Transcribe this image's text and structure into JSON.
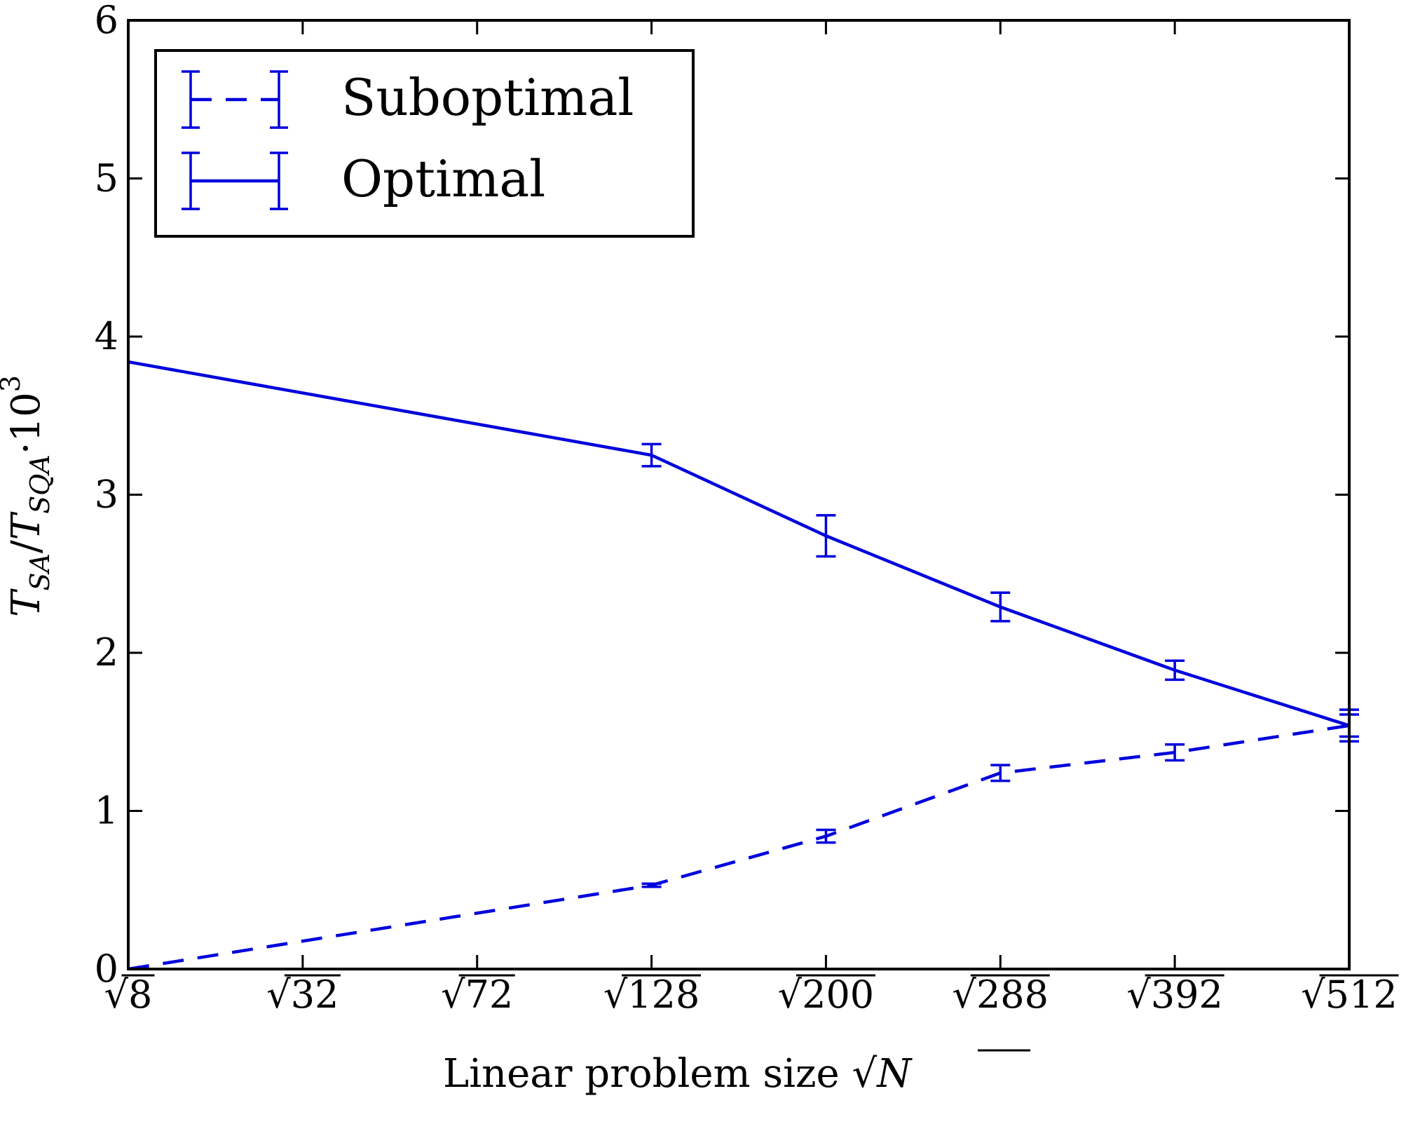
{
  "chart_data": {
    "type": "line",
    "x_tick_labels": [
      "8",
      "32",
      "72",
      "128",
      "200",
      "288",
      "392",
      "512"
    ],
    "x_tick_symbol": "√",
    "xlabel": "Linear problem size √N",
    "xlabel_text": "Linear problem size",
    "xlabel_symbol": "√",
    "xlabel_var": "N",
    "ylabel": "T_SA/T_SQA·10^3",
    "ylabel_parts": {
      "T1": "T",
      "sub1": "SA",
      "slash": "/",
      "T2": "T",
      "sub2": "SQA",
      "dot": "·10",
      "exp": "3"
    },
    "ylim": [
      0,
      6
    ],
    "y_ticks": [
      "0",
      "1",
      "2",
      "3",
      "4",
      "5",
      "6"
    ],
    "legend_position": "top-left",
    "grid": false,
    "colors": {
      "series": "#0000dd",
      "axes": "#000000"
    },
    "series": [
      {
        "name": "Suboptimal",
        "style": "dashed",
        "x": [
          "8",
          "32",
          "72",
          "128",
          "200",
          "288",
          "392",
          "512"
        ],
        "y": [
          0.0,
          null,
          null,
          0.53,
          0.84,
          1.24,
          1.37,
          1.54
        ],
        "yerr": [
          0,
          null,
          null,
          0.01,
          0.04,
          0.05,
          0.05,
          0.07
        ]
      },
      {
        "name": "Optimal",
        "style": "solid",
        "x": [
          "8",
          "32",
          "72",
          "128",
          "200",
          "288",
          "392",
          "512"
        ],
        "y": [
          3.84,
          null,
          null,
          3.25,
          2.74,
          2.29,
          1.89,
          1.54
        ],
        "yerr": [
          0,
          null,
          null,
          0.07,
          0.13,
          0.09,
          0.06,
          0.1
        ]
      }
    ]
  }
}
